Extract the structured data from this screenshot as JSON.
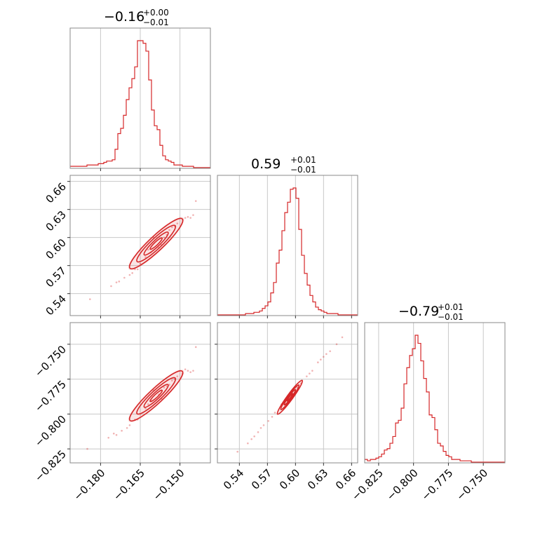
{
  "accent_color": "#d62728",
  "chart_data": {
    "type": "corner",
    "parameters": [
      {
        "index": 0,
        "title": {
          "main": "−0.16",
          "plus": "+0.00",
          "minus": "−0.01"
        },
        "median": -0.159,
        "range": [
          -0.1915,
          -0.1385
        ],
        "ticks": [
          -0.18,
          -0.165,
          -0.15
        ],
        "tick_labels": [
          "−0.180",
          "−0.165",
          "−0.150"
        ],
        "hist": {
          "range": [
            -0.1915,
            -0.1385
          ],
          "counts": [
            1,
            1,
            1,
            1,
            1,
            1,
            2,
            2,
            2,
            2,
            3,
            3,
            4,
            5,
            5,
            6,
            14,
            26,
            30,
            40,
            52,
            61,
            68,
            77,
            97,
            97,
            95,
            89,
            67,
            44,
            32,
            29,
            17,
            9,
            6,
            5,
            4,
            2,
            2,
            2,
            1,
            1,
            1,
            1,
            0,
            0,
            0,
            0,
            0,
            0
          ]
        }
      },
      {
        "index": 1,
        "title": {
          "main": "0.59",
          "plus": "+0.01",
          "minus": "−0.01"
        },
        "median": 0.594,
        "range": [
          0.5165,
          0.6665
        ],
        "ticks": [
          0.54,
          0.57,
          0.6,
          0.63,
          0.66
        ],
        "tick_labels": [
          "0.54",
          "0.57",
          "0.60",
          "0.63",
          "0.66"
        ],
        "hist": {
          "range": [
            0.5165,
            0.6665
          ],
          "counts": [
            0,
            0,
            0,
            0,
            0,
            0,
            0,
            0,
            0,
            0,
            1,
            1,
            1,
            2,
            2,
            3,
            5,
            7,
            10,
            17,
            25,
            40,
            50,
            65,
            79,
            87,
            97,
            98,
            90,
            66,
            46,
            32,
            23,
            15,
            10,
            6,
            4,
            3,
            2,
            1,
            1,
            1,
            1,
            0,
            0,
            0,
            0,
            0,
            0,
            0
          ]
        }
      },
      {
        "index": 2,
        "title": {
          "main": "−0.79",
          "plus": "+0.01",
          "minus": "−0.01"
        },
        "median": -0.788,
        "range": [
          -0.835,
          -0.7345
        ],
        "ticks": [
          -0.825,
          -0.8,
          -0.775,
          -0.75
        ],
        "tick_labels": [
          "−0.825",
          "−0.800",
          "−0.775",
          "−0.750"
        ],
        "hist": {
          "range": [
            -0.835,
            -0.7345
          ],
          "counts": [
            2,
            1,
            2,
            2,
            3,
            4,
            6,
            9,
            10,
            14,
            19,
            29,
            31,
            40,
            58,
            70,
            79,
            84,
            94,
            88,
            75,
            62,
            52,
            35,
            33,
            24,
            14,
            12,
            8,
            5,
            4,
            2,
            2,
            2,
            1,
            1,
            1,
            1,
            0,
            0,
            0,
            0,
            0,
            0,
            0,
            0,
            0,
            0,
            0,
            0
          ]
        }
      }
    ],
    "pairs": [
      {
        "x_param": 0,
        "y_param": 1,
        "ellipse": {
          "center": [
            -0.159,
            0.5935
          ],
          "major_axis_end": [
            -0.15,
            0.6175
          ],
          "minor_halfwidth": [
            0.0013,
            -0.0046
          ]
        },
        "points": [
          [
            -0.184,
            0.534
          ],
          [
            -0.176,
            0.548
          ],
          [
            -0.174,
            0.552
          ],
          [
            -0.171,
            0.557
          ],
          [
            -0.168,
            0.562
          ],
          [
            -0.166,
            0.566
          ],
          [
            -0.163,
            0.579
          ],
          [
            -0.161,
            0.584
          ],
          [
            -0.158,
            0.589
          ],
          [
            -0.155,
            0.603
          ],
          [
            -0.153,
            0.611
          ],
          [
            -0.151,
            0.615
          ],
          [
            -0.148,
            0.621
          ],
          [
            -0.147,
            0.622
          ],
          [
            -0.145,
            0.624
          ],
          [
            -0.144,
            0.639
          ],
          [
            -0.173,
            0.553
          ],
          [
            -0.169,
            0.56
          ],
          [
            -0.162,
            0.587
          ],
          [
            -0.16,
            0.6
          ],
          [
            -0.157,
            0.592
          ],
          [
            -0.154,
            0.608
          ],
          [
            -0.152,
            0.612
          ],
          [
            -0.149,
            0.619
          ],
          [
            -0.165,
            0.572
          ],
          [
            -0.167,
            0.566
          ],
          [
            -0.156,
            0.6
          ],
          [
            -0.146,
            0.621
          ]
        ]
      },
      {
        "x_param": 0,
        "y_param": 2,
        "ellipse": {
          "center": [
            -0.159,
            -0.787
          ],
          "major_axis_end": [
            -0.15,
            -0.771
          ],
          "minor_halfwidth": [
            0.0013,
            -0.003
          ]
        },
        "points": [
          [
            -0.185,
            -0.825
          ],
          [
            -0.177,
            -0.817
          ],
          [
            -0.175,
            -0.814
          ],
          [
            -0.172,
            -0.812
          ],
          [
            -0.169,
            -0.808
          ],
          [
            -0.166,
            -0.804
          ],
          [
            -0.163,
            -0.796
          ],
          [
            -0.161,
            -0.79
          ],
          [
            -0.158,
            -0.786
          ],
          [
            -0.155,
            -0.78
          ],
          [
            -0.153,
            -0.776
          ],
          [
            -0.151,
            -0.773
          ],
          [
            -0.148,
            -0.768
          ],
          [
            -0.147,
            -0.769
          ],
          [
            -0.145,
            -0.769
          ],
          [
            -0.144,
            -0.752
          ],
          [
            -0.174,
            -0.815
          ],
          [
            -0.17,
            -0.81
          ],
          [
            -0.162,
            -0.793
          ],
          [
            -0.16,
            -0.783
          ],
          [
            -0.157,
            -0.789
          ],
          [
            -0.154,
            -0.779
          ],
          [
            -0.152,
            -0.775
          ],
          [
            -0.149,
            -0.771
          ],
          [
            -0.165,
            -0.8
          ],
          [
            -0.167,
            -0.804
          ],
          [
            -0.156,
            -0.781
          ],
          [
            -0.146,
            -0.77
          ]
        ]
      },
      {
        "x_param": 1,
        "y_param": 2,
        "ellipse": {
          "center": [
            0.594,
            -0.788
          ],
          "major_axis_end": [
            0.606,
            -0.777
          ],
          "minor_halfwidth": [
            0.001,
            -0.0014
          ]
        },
        "points": [
          [
            0.538,
            -0.827
          ],
          [
            0.549,
            -0.821
          ],
          [
            0.553,
            -0.818
          ],
          [
            0.56,
            -0.813
          ],
          [
            0.566,
            -0.808
          ],
          [
            0.571,
            -0.805
          ],
          [
            0.578,
            -0.799
          ],
          [
            0.585,
            -0.793
          ],
          [
            0.592,
            -0.789
          ],
          [
            0.599,
            -0.783
          ],
          [
            0.606,
            -0.778
          ],
          [
            0.612,
            -0.773
          ],
          [
            0.618,
            -0.769
          ],
          [
            0.624,
            -0.763
          ],
          [
            0.63,
            -0.759
          ],
          [
            0.637,
            -0.755
          ],
          [
            0.644,
            -0.75
          ],
          [
            0.65,
            -0.745
          ],
          [
            0.556,
            -0.816
          ],
          [
            0.563,
            -0.81
          ],
          [
            0.575,
            -0.802
          ],
          [
            0.589,
            -0.791
          ],
          [
            0.602,
            -0.781
          ],
          [
            0.615,
            -0.771
          ],
          [
            0.627,
            -0.761
          ],
          [
            0.633,
            -0.757
          ]
        ]
      }
    ]
  }
}
